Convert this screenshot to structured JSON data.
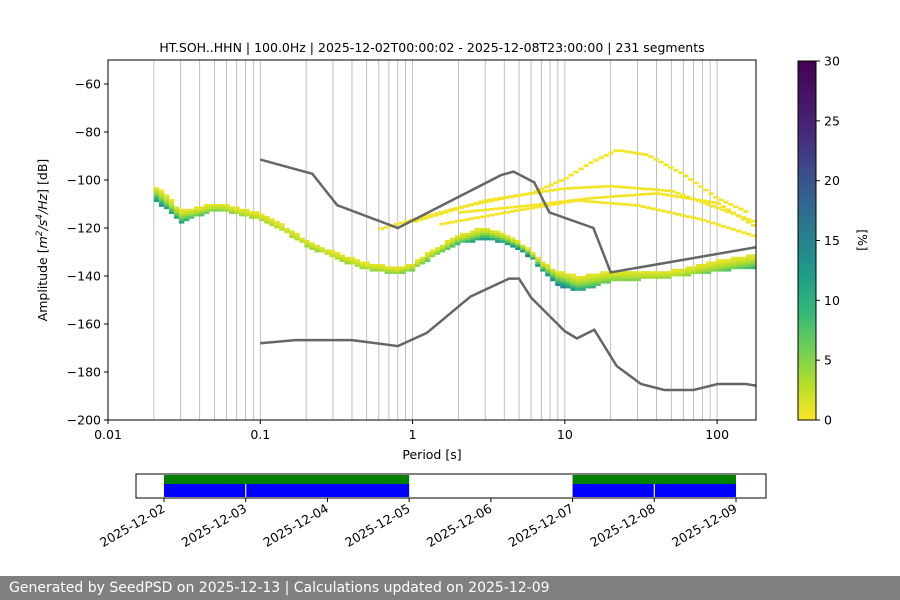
{
  "chart_data": {
    "type": "heatmap",
    "title": "HT.SOH..HHN | 100.0Hz | 2025-12-02T00:00:02 - 2025-12-08T23:00:00 | 231 segments",
    "xlabel": "Period [s]",
    "ylabel_prefix": "Amplitude [",
    "ylabel_unit": "m",
    "ylabel_exp1": "2",
    "ylabel_mid": "/s",
    "ylabel_exp2": "4",
    "ylabel_suffix": "/Hz] [dB]",
    "xscale": "log",
    "xlim": [
      0.01,
      180
    ],
    "ylim": [
      -200,
      -50
    ],
    "grid": "x-major-minor",
    "x_ticks": [
      {
        "value": 0.01,
        "label": "0.01"
      },
      {
        "value": 0.1,
        "label": "0.1"
      },
      {
        "value": 1,
        "label": "1"
      },
      {
        "value": 10,
        "label": "10"
      },
      {
        "value": 100,
        "label": "100"
      }
    ],
    "y_ticks": [
      {
        "value": -60,
        "label": "−60"
      },
      {
        "value": -80,
        "label": "−80"
      },
      {
        "value": -100,
        "label": "−100"
      },
      {
        "value": -120,
        "label": "−120"
      },
      {
        "value": -140,
        "label": "−140"
      },
      {
        "value": -160,
        "label": "−160"
      },
      {
        "value": -180,
        "label": "−180"
      },
      {
        "value": -200,
        "label": "−200"
      }
    ],
    "psd_mode_curve": [
      [
        0.02,
        -112
      ],
      [
        0.025,
        -117
      ],
      [
        0.03,
        -122
      ],
      [
        0.04,
        -120
      ],
      [
        0.05,
        -118
      ],
      [
        0.06,
        -119
      ],
      [
        0.08,
        -122
      ],
      [
        0.1,
        -124
      ],
      [
        0.15,
        -130
      ],
      [
        0.2,
        -135
      ],
      [
        0.3,
        -140
      ],
      [
        0.5,
        -144
      ],
      [
        0.8,
        -145
      ],
      [
        1.0,
        -143
      ],
      [
        1.3,
        -138
      ],
      [
        2.0,
        -131
      ],
      [
        3.0,
        -128
      ],
      [
        4.0,
        -129
      ],
      [
        5.0,
        -131
      ],
      [
        6.0,
        -134
      ],
      [
        7.0,
        -140
      ],
      [
        9.0,
        -147
      ],
      [
        12.0,
        -151
      ],
      [
        20.0,
        -150
      ],
      [
        50.0,
        -148
      ],
      [
        100.0,
        -145
      ],
      [
        180.0,
        -143
      ]
    ],
    "psd_spread_lower": [
      [
        0.02,
        -6
      ],
      [
        0.05,
        -8
      ],
      [
        0.1,
        -10
      ],
      [
        0.3,
        -10
      ],
      [
        1.0,
        -8
      ],
      [
        3.0,
        -6
      ],
      [
        6.0,
        -4
      ],
      [
        10.0,
        -6
      ],
      [
        20.0,
        -10
      ],
      [
        50.0,
        -10
      ],
      [
        180.0,
        -9
      ]
    ],
    "psd_spread_upper": [
      [
        0.02,
        10
      ],
      [
        0.05,
        8
      ],
      [
        0.1,
        10
      ],
      [
        0.3,
        10
      ],
      [
        1.0,
        8
      ],
      [
        3.0,
        8
      ],
      [
        6.0,
        4
      ],
      [
        10.0,
        10
      ],
      [
        20.0,
        12
      ],
      [
        50.0,
        10
      ],
      [
        180.0,
        12
      ]
    ],
    "psd_outlier_curves": [
      [
        [
          0.6,
          -121
        ],
        [
          1.0,
          -117
        ],
        [
          2.0,
          -112
        ],
        [
          4.0,
          -108
        ],
        [
          6.0,
          -106
        ],
        [
          10.0,
          -100
        ],
        [
          15.0,
          -93
        ],
        [
          22.0,
          -88
        ],
        [
          35.0,
          -90
        ],
        [
          60.0,
          -98
        ],
        [
          100.0,
          -108
        ],
        [
          160.0,
          -114
        ]
      ],
      [
        [
          1.0,
          -118
        ],
        [
          3.0,
          -109
        ],
        [
          6.0,
          -106
        ],
        [
          10.0,
          -104
        ],
        [
          20.0,
          -103
        ],
        [
          50.0,
          -105
        ],
        [
          100.0,
          -112
        ],
        [
          180.0,
          -118
        ]
      ],
      [
        [
          2.0,
          -114
        ],
        [
          6.0,
          -111
        ],
        [
          15.0,
          -108
        ],
        [
          40.0,
          -106
        ],
        [
          100.0,
          -110
        ],
        [
          180.0,
          -120
        ]
      ],
      [
        [
          1.5,
          -119
        ],
        [
          5.0,
          -113
        ],
        [
          12.0,
          -109
        ],
        [
          30.0,
          -111
        ],
        [
          80.0,
          -117
        ],
        [
          180.0,
          -124
        ]
      ]
    ],
    "nhnm": [
      [
        0.1,
        -91.5
      ],
      [
        0.22,
        -97.4
      ],
      [
        0.32,
        -110.5
      ],
      [
        0.8,
        -120
      ],
      [
        3.8,
        -98
      ],
      [
        4.6,
        -96.5
      ],
      [
        6.3,
        -101
      ],
      [
        7.9,
        -113.5
      ],
      [
        15.4,
        -120
      ],
      [
        20.0,
        -138.5
      ],
      [
        180.0,
        -128
      ]
    ],
    "nlnm": [
      [
        0.1,
        -168
      ],
      [
        0.17,
        -166.7
      ],
      [
        0.4,
        -166.7
      ],
      [
        0.8,
        -169.2
      ],
      [
        1.24,
        -163.7
      ],
      [
        2.4,
        -148.6
      ],
      [
        4.3,
        -141.1
      ],
      [
        5.0,
        -141.1
      ],
      [
        6.0,
        -149
      ],
      [
        10.0,
        -163
      ],
      [
        12.0,
        -166
      ],
      [
        15.6,
        -162.4
      ],
      [
        21.9,
        -177.5
      ],
      [
        31.6,
        -185
      ],
      [
        45.0,
        -187.5
      ],
      [
        70.0,
        -187.5
      ],
      [
        101.0,
        -185
      ],
      [
        154.0,
        -185
      ],
      [
        180.0,
        -185.7
      ]
    ],
    "colorbar": {
      "label": "[%]",
      "min": 0,
      "max": 30,
      "ticks": [
        "0",
        "5",
        "10",
        "15",
        "20",
        "25",
        "30"
      ]
    },
    "timeline": {
      "start": "2025-12-02",
      "end": "2025-12-09",
      "date_labels": [
        "2025-12-02",
        "2025-12-03",
        "2025-12-04",
        "2025-12-05",
        "2025-12-06",
        "2025-12-07",
        "2025-12-08",
        "2025-12-09"
      ],
      "data_spans": [
        [
          "2025-12-02T00:00",
          "2025-12-05T00:00"
        ],
        [
          "2025-12-07T00:00",
          "2025-12-09T00:00"
        ]
      ],
      "psd_spans": [
        [
          "2025-12-02T00:00",
          "2025-12-02T23:50"
        ],
        [
          "2025-12-03T00:10",
          "2025-12-05T00:00"
        ],
        [
          "2025-12-07T00:00",
          "2025-12-07T23:50"
        ],
        [
          "2025-12-08T00:10",
          "2025-12-09T00:00"
        ]
      ],
      "data_color": "#008000",
      "psd_color": "#0000ff"
    }
  },
  "footer": "Generated by SeedPSD on 2025-12-13 | Calculations updated on 2025-12-09",
  "colors": {
    "model_line": "#666666",
    "grid": "#b0b0b0",
    "footer_bg": "#808080"
  }
}
